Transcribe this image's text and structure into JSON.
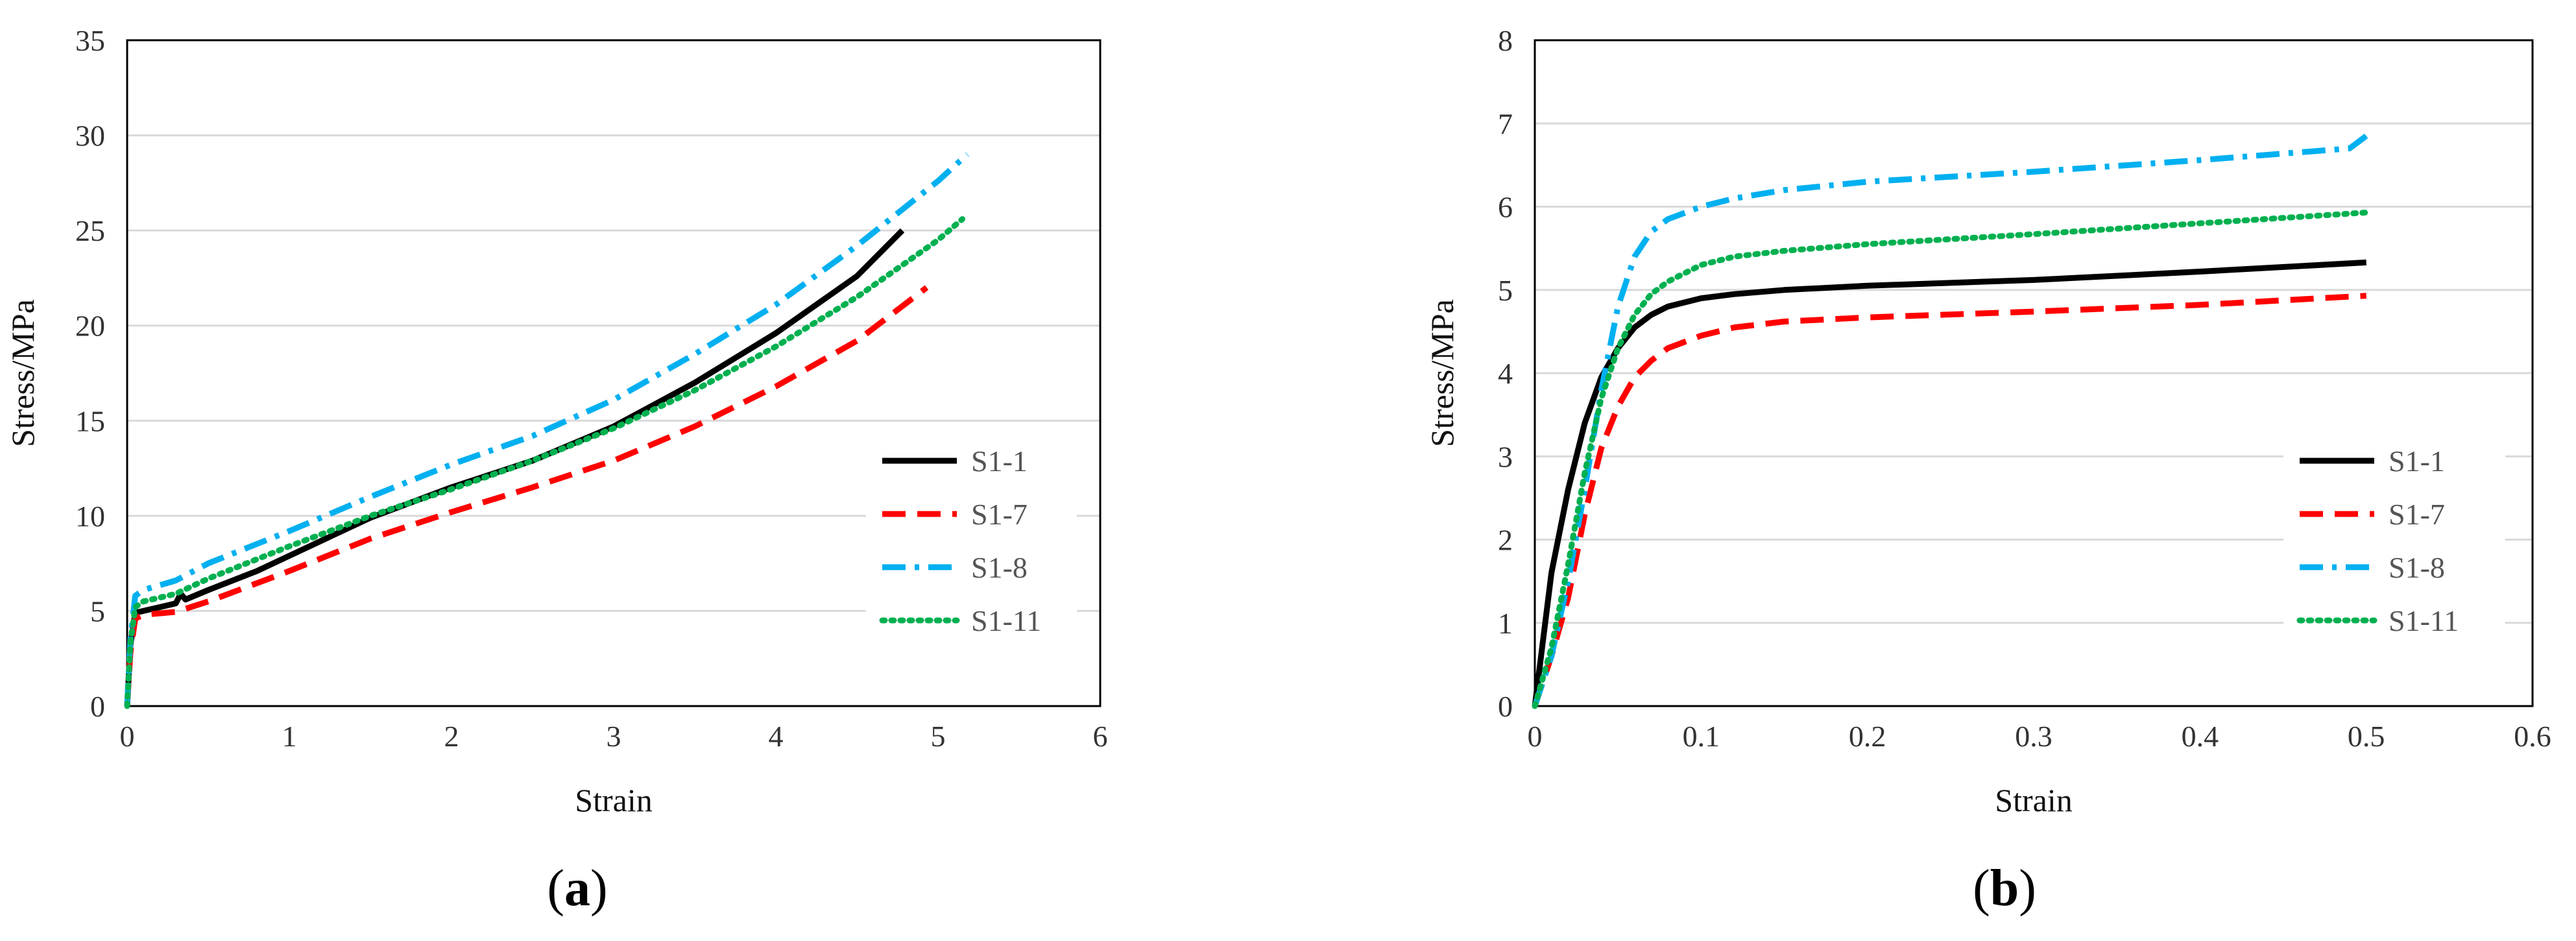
{
  "chart_data": [
    {
      "type": "line",
      "panel_label": "a",
      "caption_open": "(",
      "caption_close": ")",
      "title": "",
      "xlabel": "Strain",
      "ylabel": "Stress/MPa",
      "xlim": [
        0,
        6
      ],
      "ylim": [
        0,
        35
      ],
      "xticks": [
        0,
        1,
        2,
        3,
        4,
        5,
        6
      ],
      "yticks": [
        0,
        5,
        10,
        15,
        20,
        25,
        30,
        35
      ],
      "grid": "horizontal",
      "legend_position": "right",
      "series": [
        {
          "name": "S1-1",
          "color": "#000000",
          "dash": "solid",
          "points": [
            [
              0,
              0
            ],
            [
              0.02,
              3.2
            ],
            [
              0.05,
              4.9
            ],
            [
              0.1,
              5.0
            ],
            [
              0.2,
              5.2
            ],
            [
              0.3,
              5.4
            ],
            [
              0.33,
              5.9
            ],
            [
              0.36,
              5.6
            ],
            [
              0.5,
              6.1
            ],
            [
              0.8,
              7.1
            ],
            [
              1.0,
              7.9
            ],
            [
              1.5,
              9.9
            ],
            [
              2.0,
              11.5
            ],
            [
              2.5,
              12.9
            ],
            [
              3.0,
              14.7
            ],
            [
              3.5,
              17.0
            ],
            [
              4.0,
              19.6
            ],
            [
              4.5,
              22.6
            ],
            [
              4.78,
              25.0
            ]
          ]
        },
        {
          "name": "S1-7",
          "color": "#ff0000",
          "dash": "dashed",
          "points": [
            [
              0,
              0
            ],
            [
              0.02,
              2.8
            ],
            [
              0.05,
              4.6
            ],
            [
              0.1,
              4.8
            ],
            [
              0.3,
              4.95
            ],
            [
              0.5,
              5.5
            ],
            [
              1.0,
              7.1
            ],
            [
              1.5,
              8.8
            ],
            [
              2.0,
              10.2
            ],
            [
              2.5,
              11.5
            ],
            [
              3.0,
              12.9
            ],
            [
              3.5,
              14.7
            ],
            [
              4.0,
              16.8
            ],
            [
              4.5,
              19.2
            ],
            [
              4.93,
              22.0
            ]
          ]
        },
        {
          "name": "S1-8",
          "color": "#00b0f0",
          "dash": "dashdot",
          "points": [
            [
              0,
              0
            ],
            [
              0.02,
              3.5
            ],
            [
              0.05,
              5.8
            ],
            [
              0.1,
              6.1
            ],
            [
              0.3,
              6.6
            ],
            [
              0.5,
              7.5
            ],
            [
              1.0,
              9.2
            ],
            [
              1.5,
              11.0
            ],
            [
              2.0,
              12.7
            ],
            [
              2.5,
              14.2
            ],
            [
              3.0,
              16.1
            ],
            [
              3.5,
              18.5
            ],
            [
              4.0,
              21.1
            ],
            [
              4.5,
              24.2
            ],
            [
              5.0,
              27.6
            ],
            [
              5.18,
              29.0
            ]
          ]
        },
        {
          "name": "S1-11",
          "color": "#00b050",
          "dash": "dotted",
          "points": [
            [
              0,
              0
            ],
            [
              0.02,
              3.3
            ],
            [
              0.05,
              5.2
            ],
            [
              0.1,
              5.5
            ],
            [
              0.3,
              5.9
            ],
            [
              0.5,
              6.7
            ],
            [
              1.0,
              8.4
            ],
            [
              1.5,
              10.0
            ],
            [
              2.0,
              11.4
            ],
            [
              2.5,
              12.9
            ],
            [
              3.0,
              14.6
            ],
            [
              3.5,
              16.6
            ],
            [
              4.0,
              18.9
            ],
            [
              4.5,
              21.5
            ],
            [
              5.0,
              24.5
            ],
            [
              5.15,
              25.6
            ]
          ]
        }
      ]
    },
    {
      "type": "line",
      "panel_label": "b",
      "caption_open": "(",
      "caption_close": ")",
      "title": "",
      "xlabel": "Strain",
      "ylabel": "Stress/MPa",
      "xlim": [
        0,
        0.6
      ],
      "ylim": [
        0,
        8
      ],
      "xticks": [
        0,
        0.1,
        0.2,
        0.3,
        0.4,
        0.5,
        0.6
      ],
      "yticks": [
        0,
        1,
        2,
        3,
        4,
        5,
        6,
        7,
        8
      ],
      "grid": "horizontal",
      "legend_position": "right",
      "series": [
        {
          "name": "S1-1",
          "color": "#000000",
          "dash": "solid",
          "points": [
            [
              0,
              0
            ],
            [
              0.005,
              0.8
            ],
            [
              0.01,
              1.6
            ],
            [
              0.02,
              2.6
            ],
            [
              0.03,
              3.4
            ],
            [
              0.04,
              3.95
            ],
            [
              0.05,
              4.3
            ],
            [
              0.06,
              4.55
            ],
            [
              0.07,
              4.7
            ],
            [
              0.08,
              4.8
            ],
            [
              0.1,
              4.9
            ],
            [
              0.12,
              4.95
            ],
            [
              0.15,
              5.0
            ],
            [
              0.2,
              5.05
            ],
            [
              0.3,
              5.12
            ],
            [
              0.4,
              5.22
            ],
            [
              0.5,
              5.33
            ]
          ]
        },
        {
          "name": "S1-7",
          "color": "#ff0000",
          "dash": "dashed",
          "points": [
            [
              0,
              0
            ],
            [
              0.01,
              0.6
            ],
            [
              0.02,
              1.3
            ],
            [
              0.03,
              2.3
            ],
            [
              0.04,
              3.1
            ],
            [
              0.05,
              3.6
            ],
            [
              0.06,
              3.95
            ],
            [
              0.07,
              4.15
            ],
            [
              0.08,
              4.3
            ],
            [
              0.1,
              4.45
            ],
            [
              0.12,
              4.55
            ],
            [
              0.15,
              4.62
            ],
            [
              0.2,
              4.67
            ],
            [
              0.3,
              4.74
            ],
            [
              0.4,
              4.82
            ],
            [
              0.5,
              4.93
            ]
          ]
        },
        {
          "name": "S1-8",
          "color": "#00b0f0",
          "dash": "dashdot",
          "points": [
            [
              0,
              0
            ],
            [
              0.01,
              0.6
            ],
            [
              0.02,
              1.5
            ],
            [
              0.03,
              2.6
            ],
            [
              0.04,
              3.8
            ],
            [
              0.05,
              4.8
            ],
            [
              0.06,
              5.4
            ],
            [
              0.07,
              5.7
            ],
            [
              0.08,
              5.85
            ],
            [
              0.1,
              6.0
            ],
            [
              0.12,
              6.1
            ],
            [
              0.15,
              6.2
            ],
            [
              0.2,
              6.3
            ],
            [
              0.3,
              6.42
            ],
            [
              0.4,
              6.56
            ],
            [
              0.49,
              6.7
            ],
            [
              0.5,
              6.85
            ]
          ]
        },
        {
          "name": "S1-11",
          "color": "#00b050",
          "dash": "dotted",
          "points": [
            [
              0,
              0
            ],
            [
              0.01,
              0.7
            ],
            [
              0.02,
              1.7
            ],
            [
              0.03,
              2.8
            ],
            [
              0.04,
              3.7
            ],
            [
              0.05,
              4.3
            ],
            [
              0.06,
              4.7
            ],
            [
              0.07,
              4.95
            ],
            [
              0.08,
              5.1
            ],
            [
              0.1,
              5.3
            ],
            [
              0.12,
              5.4
            ],
            [
              0.15,
              5.47
            ],
            [
              0.2,
              5.55
            ],
            [
              0.3,
              5.67
            ],
            [
              0.4,
              5.8
            ],
            [
              0.5,
              5.93
            ]
          ]
        }
      ]
    }
  ]
}
